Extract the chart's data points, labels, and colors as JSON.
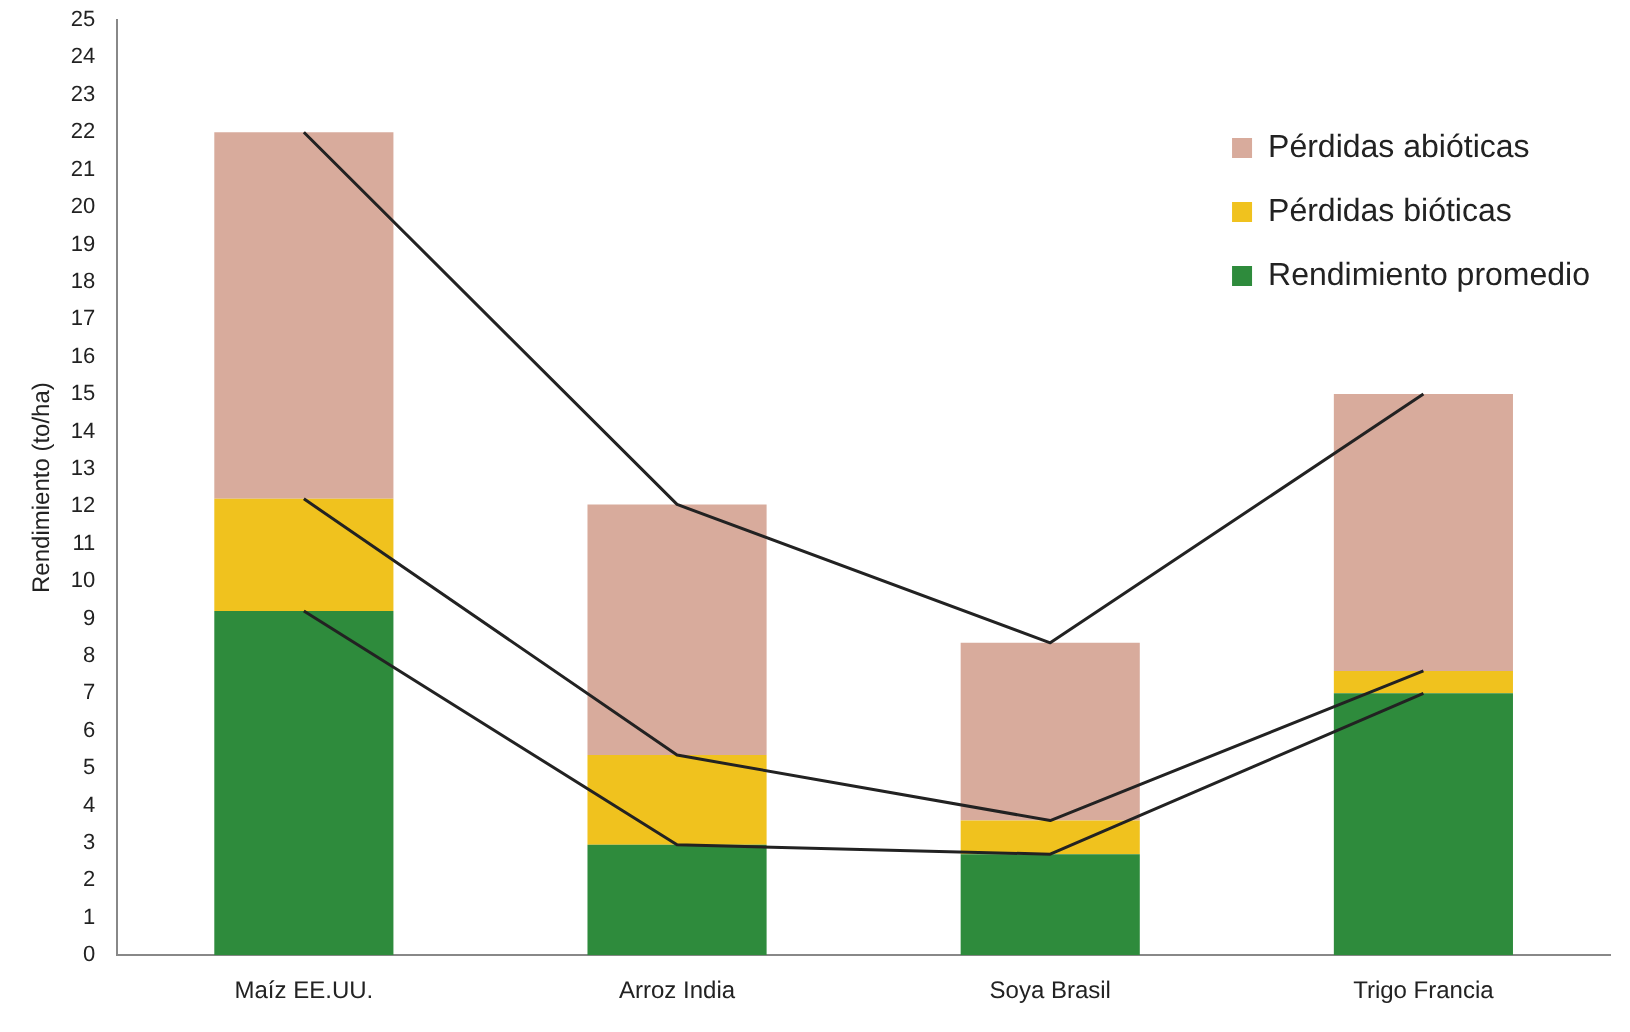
{
  "chart_data": {
    "type": "bar",
    "stacked": true,
    "ylabel": "Rendimiento (to/ha)",
    "categories": [
      "Maíz EE.UU.",
      "Arroz India",
      "Soya Brasil",
      "Trigo Francia"
    ],
    "series": [
      {
        "name": "Rendimiento promedio",
        "color": "#2e8b3c",
        "values": [
          9.2,
          2.95,
          2.7,
          7.0
        ]
      },
      {
        "name": "Pérdidas bióticas",
        "color": "#f0c21e",
        "values": [
          3.0,
          2.4,
          0.9,
          0.6
        ]
      },
      {
        "name": "Pérdidas abióticas",
        "color": "#d8ab9c",
        "values": [
          9.8,
          6.7,
          4.75,
          7.4
        ]
      },
      {
        "type": "line",
        "color": "#222222",
        "values": [
          9.2,
          2.95,
          2.7,
          7.0
        ]
      },
      {
        "type": "line",
        "color": "#222222",
        "values": [
          12.2,
          5.35,
          3.6,
          7.6
        ]
      },
      {
        "type": "line",
        "color": "#222222",
        "values": [
          22,
          12.05,
          8.35,
          15
        ]
      }
    ],
    "ylim": [
      0,
      25
    ],
    "yticks": [
      0,
      1,
      2,
      3,
      4,
      5,
      6,
      7,
      8,
      9,
      10,
      11,
      12,
      13,
      14,
      15,
      16,
      17,
      18,
      19,
      20,
      21,
      22,
      23,
      24,
      25
    ],
    "grid": false,
    "legend": "top right",
    "marker": "none"
  }
}
